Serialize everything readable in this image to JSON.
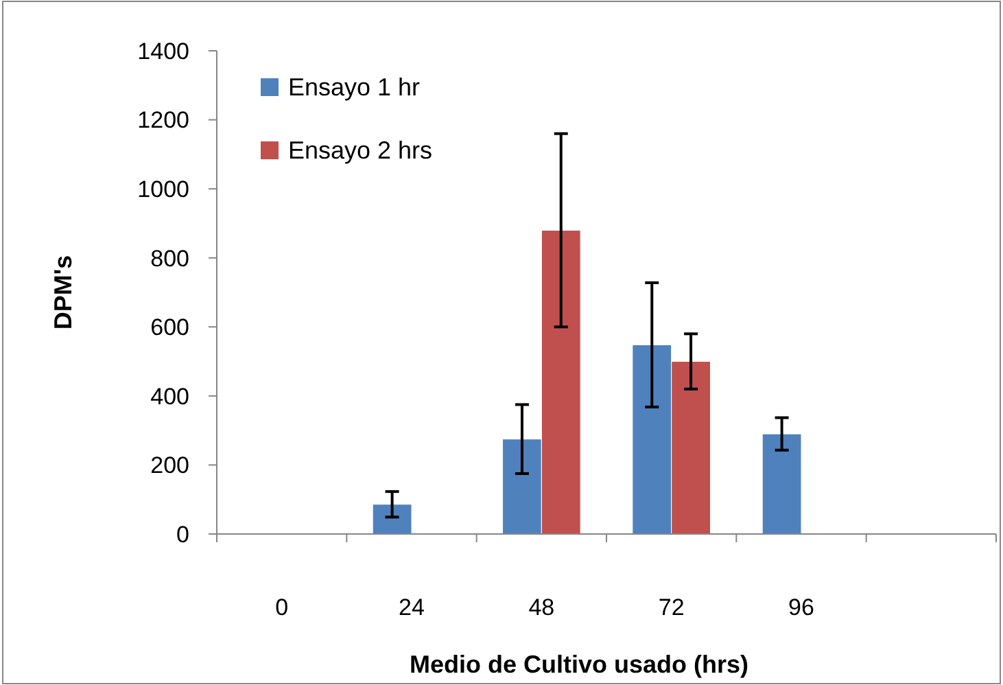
{
  "chart_data": {
    "type": "bar",
    "xlabel": "Medio de Cultivo usado (hrs)",
    "ylabel": "DPM's",
    "categories": [
      "0",
      "24",
      "48",
      "72",
      "96",
      null
    ],
    "series": [
      {
        "name": "Ensayo 1 hr",
        "color": "#4f81bd",
        "values": [
          null,
          86,
          275,
          548,
          290,
          null
        ],
        "errors": [
          null,
          37,
          100,
          180,
          47,
          null
        ]
      },
      {
        "name": "Ensayo 2 hrs",
        "color": "#c0504d",
        "values": [
          null,
          null,
          880,
          500,
          null,
          null
        ],
        "errors": [
          null,
          null,
          280,
          80,
          null,
          null
        ]
      }
    ],
    "ylim": [
      0,
      1400
    ],
    "yticks": [
      0,
      200,
      400,
      600,
      800,
      1000,
      1200,
      1400
    ],
    "grid": false,
    "legend": "top left"
  }
}
